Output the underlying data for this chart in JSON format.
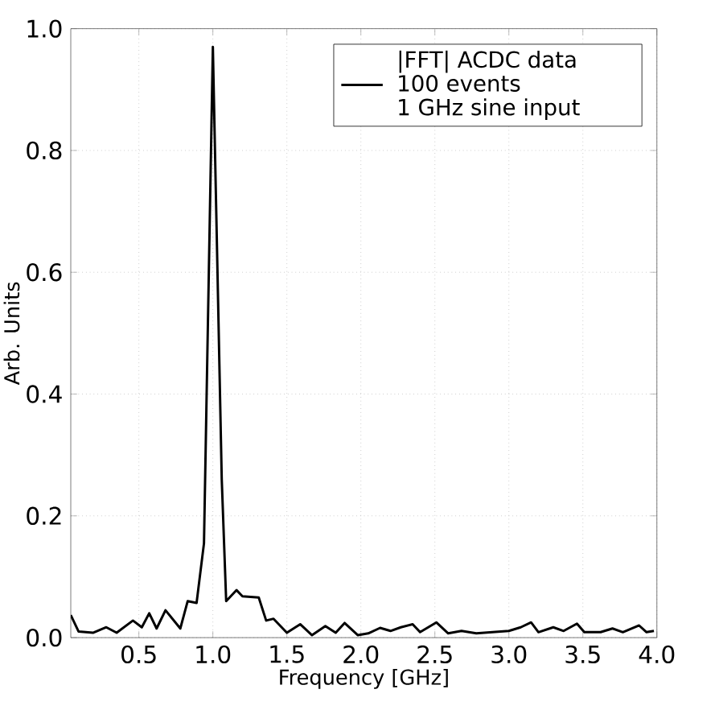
{
  "chart_data": {
    "type": "line",
    "xlabel": "Frequency [GHz]",
    "ylabel": "Arb. Units",
    "x": [
      0.04,
      0.093,
      0.19,
      0.28,
      0.35,
      0.46,
      0.52,
      0.57,
      0.62,
      0.68,
      0.78,
      0.83,
      0.89,
      0.94,
      1.0,
      1.06,
      1.09,
      1.16,
      1.2,
      1.31,
      1.36,
      1.41,
      1.5,
      1.59,
      1.67,
      1.76,
      1.83,
      1.89,
      1.98,
      2.05,
      2.13,
      2.2,
      2.27,
      2.35,
      2.4,
      2.51,
      2.59,
      2.68,
      2.78,
      2.89,
      3.0,
      3.08,
      3.15,
      3.2,
      3.3,
      3.37,
      3.46,
      3.51,
      3.62,
      3.7,
      3.77,
      3.88,
      3.93,
      3.98
    ],
    "series": [
      {
        "name": "|FFT| ACDC data\n100 events\n1 GHz sine input",
        "color": "#000000",
        "values": [
          0.037,
          0.01,
          0.008,
          0.017,
          0.008,
          0.028,
          0.017,
          0.04,
          0.015,
          0.045,
          0.015,
          0.06,
          0.057,
          0.155,
          0.97,
          0.26,
          0.06,
          0.078,
          0.068,
          0.066,
          0.028,
          0.031,
          0.008,
          0.022,
          0.004,
          0.019,
          0.008,
          0.024,
          0.004,
          0.007,
          0.016,
          0.011,
          0.017,
          0.022,
          0.009,
          0.025,
          0.007,
          0.011,
          0.007,
          0.009,
          0.011,
          0.017,
          0.025,
          0.009,
          0.017,
          0.011,
          0.023,
          0.009,
          0.009,
          0.015,
          0.009,
          0.02,
          0.009,
          0.011
        ]
      }
    ],
    "xlim": [
      0.04,
      4.0
    ],
    "ylim": [
      0.0,
      1.0
    ],
    "xticks": [
      0.5,
      {
        "value": 1.0,
        "label": "1.0"
      },
      1.5,
      {
        "value": 2.0,
        "label": "2.0"
      },
      2.5,
      {
        "value": 3.0,
        "label": "3.0"
      },
      3.5,
      {
        "value": 4.0,
        "label": "4.0"
      }
    ],
    "yticks": [
      {
        "value": 0.0,
        "label": "0.0"
      },
      0.2,
      0.4,
      0.6,
      0.8,
      {
        "value": 1.0,
        "label": "1.0"
      }
    ],
    "grid": true,
    "legend": "top right",
    "marker": "none",
    "line_style": "solid"
  }
}
